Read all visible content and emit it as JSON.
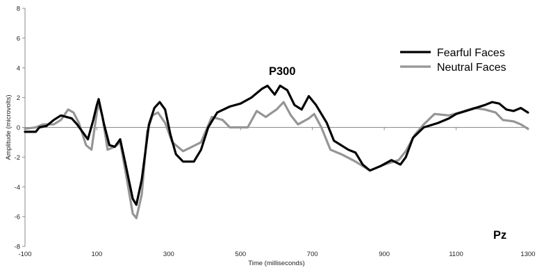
{
  "chart_data": {
    "type": "line",
    "xlabel": "Time (milliseconds)",
    "ylabel": "Amplitude (microvolts)",
    "xlim": [
      -100,
      1300
    ],
    "ylim": [
      -8,
      8
    ],
    "x_ticks": [
      -100,
      100,
      300,
      500,
      700,
      900,
      1100,
      1300
    ],
    "y_ticks": [
      -8,
      -6,
      -4,
      -2,
      0,
      2,
      4,
      6,
      8
    ],
    "grid": false,
    "legend_position": "top-right",
    "annotations": [
      "P300",
      "Pz"
    ],
    "series": [
      {
        "name": "Fearful Faces",
        "color": "#000000",
        "points": [
          [
            -100,
            -0.3
          ],
          [
            -70,
            -0.3
          ],
          [
            -60,
            0
          ],
          [
            -40,
            0.1
          ],
          [
            -20,
            0.5
          ],
          [
            0,
            0.8
          ],
          [
            30,
            0.6
          ],
          [
            45,
            0.2
          ],
          [
            60,
            -0.3
          ],
          [
            75,
            -0.8
          ],
          [
            90,
            0.5
          ],
          [
            100,
            1.5
          ],
          [
            105,
            1.9
          ],
          [
            120,
            0.2
          ],
          [
            135,
            -1.2
          ],
          [
            150,
            -1.3
          ],
          [
            165,
            -0.8
          ],
          [
            180,
            -2.5
          ],
          [
            200,
            -4.8
          ],
          [
            210,
            -5.2
          ],
          [
            225,
            -3.5
          ],
          [
            245,
            0.2
          ],
          [
            260,
            1.3
          ],
          [
            275,
            1.7
          ],
          [
            290,
            1.2
          ],
          [
            305,
            -0.5
          ],
          [
            320,
            -1.8
          ],
          [
            340,
            -2.3
          ],
          [
            370,
            -2.3
          ],
          [
            390,
            -1.5
          ],
          [
            410,
            0
          ],
          [
            435,
            1
          ],
          [
            470,
            1.4
          ],
          [
            500,
            1.6
          ],
          [
            530,
            2
          ],
          [
            560,
            2.6
          ],
          [
            575,
            2.8
          ],
          [
            595,
            2.2
          ],
          [
            610,
            2.8
          ],
          [
            630,
            2.5
          ],
          [
            650,
            1.5
          ],
          [
            670,
            1.2
          ],
          [
            690,
            2.1
          ],
          [
            710,
            1.5
          ],
          [
            740,
            0.3
          ],
          [
            760,
            -0.9
          ],
          [
            780,
            -1.2
          ],
          [
            800,
            -1.5
          ],
          [
            820,
            -1.7
          ],
          [
            840,
            -2.5
          ],
          [
            860,
            -2.9
          ],
          [
            890,
            -2.6
          ],
          [
            920,
            -2.2
          ],
          [
            945,
            -2.5
          ],
          [
            960,
            -2.0
          ],
          [
            980,
            -0.7
          ],
          [
            1010,
            0
          ],
          [
            1050,
            0.3
          ],
          [
            1080,
            0.6
          ],
          [
            1100,
            0.9
          ],
          [
            1140,
            1.2
          ],
          [
            1180,
            1.5
          ],
          [
            1200,
            1.7
          ],
          [
            1220,
            1.6
          ],
          [
            1240,
            1.2
          ],
          [
            1260,
            1.1
          ],
          [
            1280,
            1.3
          ],
          [
            1300,
            1.0
          ]
        ]
      },
      {
        "name": "Neutral Faces",
        "color": "#959595",
        "points": [
          [
            -100,
            -0.1
          ],
          [
            -70,
            0
          ],
          [
            -50,
            0.2
          ],
          [
            -20,
            0.2
          ],
          [
            0,
            0.5
          ],
          [
            20,
            1.2
          ],
          [
            35,
            1.0
          ],
          [
            50,
            0.3
          ],
          [
            70,
            -1.2
          ],
          [
            85,
            -1.5
          ],
          [
            100,
            1.0
          ],
          [
            105,
            1.6
          ],
          [
            115,
            0.8
          ],
          [
            130,
            -1.5
          ],
          [
            150,
            -1.3
          ],
          [
            165,
            -1.0
          ],
          [
            180,
            -3.0
          ],
          [
            200,
            -5.8
          ],
          [
            210,
            -6.1
          ],
          [
            225,
            -4.5
          ],
          [
            240,
            -0.3
          ],
          [
            255,
            0.8
          ],
          [
            270,
            1.0
          ],
          [
            290,
            0.3
          ],
          [
            310,
            -1.0
          ],
          [
            340,
            -1.6
          ],
          [
            365,
            -1.3
          ],
          [
            390,
            -1.0
          ],
          [
            420,
            0.7
          ],
          [
            450,
            0.5
          ],
          [
            470,
            0
          ],
          [
            520,
            0
          ],
          [
            545,
            1.1
          ],
          [
            570,
            0.7
          ],
          [
            600,
            1.2
          ],
          [
            620,
            1.7
          ],
          [
            640,
            0.8
          ],
          [
            660,
            0.2
          ],
          [
            690,
            0.6
          ],
          [
            705,
            0.9
          ],
          [
            725,
            0
          ],
          [
            750,
            -1.5
          ],
          [
            780,
            -1.8
          ],
          [
            820,
            -2.3
          ],
          [
            860,
            -2.9
          ],
          [
            900,
            -2.5
          ],
          [
            940,
            -2.2
          ],
          [
            960,
            -1.6
          ],
          [
            985,
            -0.5
          ],
          [
            1010,
            0.2
          ],
          [
            1040,
            0.9
          ],
          [
            1080,
            0.8
          ],
          [
            1110,
            1.0
          ],
          [
            1150,
            1.3
          ],
          [
            1180,
            1.2
          ],
          [
            1210,
            1.0
          ],
          [
            1230,
            0.5
          ],
          [
            1260,
            0.4
          ],
          [
            1280,
            0.2
          ],
          [
            1300,
            -0.1
          ]
        ]
      }
    ]
  }
}
